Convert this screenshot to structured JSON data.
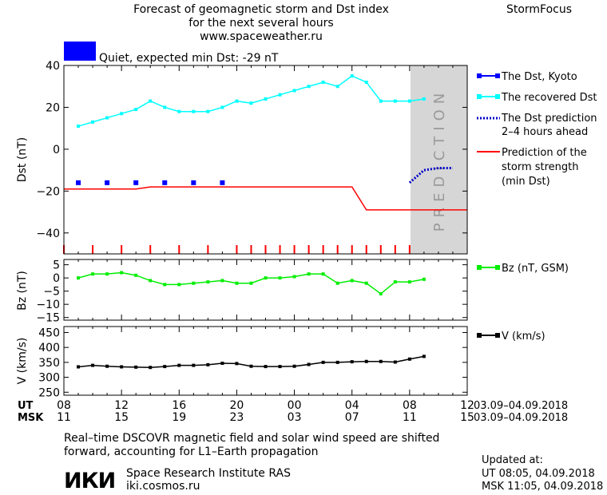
{
  "header": {
    "title_line1": "Forecast of geomagnetic storm and Dst index",
    "title_line2": "for the next several hours",
    "url": "www.spaceweather.ru",
    "brand": "StormFocus",
    "status_text": "Quiet, expected min Dst: -29 nT",
    "status_color": "#0000ff"
  },
  "colors": {
    "dst_kyoto": "#0000ff",
    "dst_recovered": "#00ffff",
    "dst_prediction": "#0000cc",
    "storm_strength": "#ff0000",
    "bz": "#00ee00",
    "v": "#000000",
    "prediction_band": "#d6d6d6"
  },
  "prediction_label": "PREDICTION",
  "chart_data": [
    {
      "id": "dst",
      "type": "line",
      "ylabel": "Dst (nT)",
      "ylim": [
        -50,
        40
      ],
      "yticks": [
        40,
        20,
        0,
        -20,
        -40
      ],
      "xlim": [
        8,
        36
      ],
      "prediction_band": [
        32,
        36
      ],
      "series": [
        {
          "name": "The Dst, Kyoto",
          "style": "squares",
          "x": [
            9,
            11,
            13,
            15,
            17,
            19
          ],
          "y": [
            -16,
            -16,
            -16,
            -16,
            -16,
            -16
          ]
        },
        {
          "name": "The recovered Dst",
          "style": "line-squares",
          "x": [
            9,
            10,
            11,
            12,
            13,
            14,
            15,
            16,
            17,
            18,
            19,
            20,
            21,
            22,
            23,
            24,
            25,
            26,
            27,
            28,
            29,
            30,
            31,
            32,
            33
          ],
          "y": [
            11,
            13,
            15,
            17,
            19,
            23,
            20,
            18,
            18,
            18,
            20,
            23,
            22,
            24,
            26,
            28,
            30,
            32,
            30,
            35,
            32,
            23,
            23,
            23,
            24
          ]
        },
        {
          "name": "The Dst prediction 2-4 hours ahead",
          "style": "dotted",
          "x": [
            32,
            33,
            34,
            35
          ],
          "y": [
            -16,
            -10,
            -9,
            -9
          ]
        },
        {
          "name": "Prediction of the storm strength (min Dst)",
          "style": "step",
          "x": [
            8,
            13,
            14,
            28,
            29,
            36
          ],
          "y": [
            -19,
            -19,
            -18,
            -18,
            -29,
            -29
          ]
        }
      ],
      "event_ticks": [
        8,
        10,
        12,
        14,
        16,
        18,
        20,
        21,
        22,
        23,
        24,
        25,
        26,
        27,
        28,
        29,
        30,
        31,
        32
      ]
    },
    {
      "id": "bz",
      "type": "line",
      "ylabel": "Bz (nT)",
      "ylim": [
        -16,
        7
      ],
      "yticks": [
        5,
        0,
        -5,
        -10,
        -15
      ],
      "series": [
        {
          "name": "Bz (nT, GSM)",
          "x": [
            9,
            10,
            11,
            12,
            13,
            14,
            15,
            16,
            17,
            18,
            19,
            20,
            21,
            22,
            23,
            24,
            25,
            26,
            27,
            28,
            29,
            30,
            31,
            32,
            33
          ],
          "y": [
            0,
            1.5,
            1.5,
            2,
            1,
            -1,
            -2.5,
            -2.5,
            -2,
            -1.5,
            -1,
            -2,
            -2,
            0,
            0,
            0.5,
            1.5,
            1.5,
            -2,
            -1,
            -2,
            -6,
            -1.5,
            -1.5,
            -0.5
          ]
        }
      ]
    },
    {
      "id": "v",
      "type": "line",
      "ylabel": "V (km/s)",
      "ylim": [
        240,
        470
      ],
      "yticks": [
        450,
        400,
        350,
        300,
        250
      ],
      "series": [
        {
          "name": "V (km/s)",
          "x": [
            9,
            10,
            11,
            12,
            13,
            14,
            15,
            16,
            17,
            18,
            19,
            20,
            21,
            22,
            23,
            24,
            25,
            26,
            27,
            28,
            29,
            30,
            31,
            32,
            33
          ],
          "y": [
            335,
            340,
            337,
            335,
            334,
            333,
            336,
            340,
            340,
            342,
            347,
            346,
            337,
            336,
            336,
            337,
            343,
            350,
            350,
            352,
            353,
            353,
            351,
            361,
            370
          ]
        }
      ]
    }
  ],
  "x_axis": {
    "ut_label": "UT",
    "msk_label": "MSK",
    "ut_ticks": [
      "08",
      "12",
      "16",
      "20",
      "00",
      "04",
      "08",
      "12"
    ],
    "msk_ticks": [
      "11",
      "15",
      "19",
      "23",
      "03",
      "07",
      "11",
      "15"
    ],
    "date_range_ut": "03.09–04.09.2018",
    "date_range_msk": "03.09–04.09.2018"
  },
  "legend": {
    "kyoto": "The Dst, Kyoto",
    "recovered": "The recovered Dst",
    "prediction_l1": "The Dst prediction",
    "prediction_l2": "2–4 hours ahead",
    "strength_l1": "Prediction of the",
    "strength_l2": "storm strength",
    "strength_l3": "(min Dst)",
    "bz": "Bz (nT, GSM)",
    "v": "V (km/s)"
  },
  "footer": {
    "note_line1": "Real–time DSCOVR magnetic field and solar wind speed are shifted",
    "note_line2": "forward, accounting for L1–Earth propagation",
    "logo": "ИКИ",
    "institute": "Space Research Institute RAS",
    "site": "iki.cosmos.ru",
    "updated_label": "Updated at:",
    "updated_ut": "UT   08:05, 04.09.2018",
    "updated_msk": "MSK 11:05, 04.09.2018"
  }
}
